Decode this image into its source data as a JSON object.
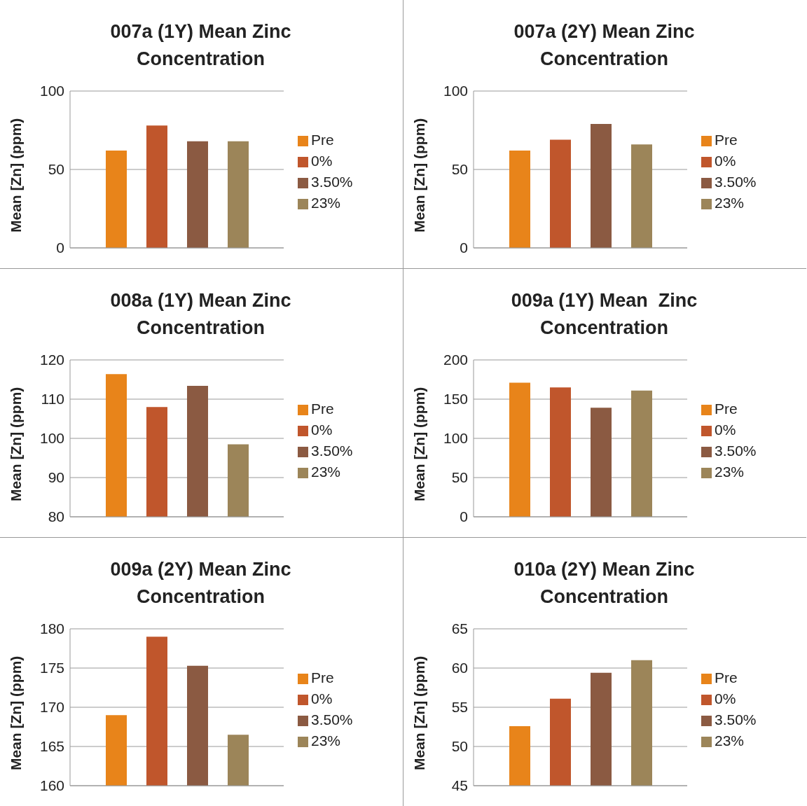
{
  "chart_data": [
    {
      "type": "bar",
      "title": "007a (1Y) Mean Zinc Concentration",
      "ylabel": "Mean [Zn] (ppm)",
      "categories": [
        null
      ],
      "ylim": [
        0,
        100
      ],
      "yticks": [
        0,
        50,
        100
      ],
      "grid": "y",
      "legend": "right",
      "series": [
        {
          "name": "Pre",
          "color": "#e8841a",
          "values": [
            62
          ]
        },
        {
          "name": "0%",
          "color": "#c0562c",
          "values": [
            78
          ]
        },
        {
          "name": "3.50%",
          "color": "#8b5a42",
          "values": [
            68
          ]
        },
        {
          "name": "23%",
          "color": "#9c8559",
          "values": [
            68
          ]
        }
      ]
    },
    {
      "type": "bar",
      "title": "007a (2Y) Mean Zinc Concentration",
      "ylabel": "Mean [Zn] (ppm)",
      "categories": [
        null
      ],
      "ylim": [
        0,
        100
      ],
      "yticks": [
        0,
        50,
        100
      ],
      "grid": "y",
      "legend": "right",
      "series": [
        {
          "name": "Pre",
          "color": "#e8841a",
          "values": [
            62
          ]
        },
        {
          "name": "0%",
          "color": "#c0562c",
          "values": [
            69
          ]
        },
        {
          "name": "3.50%",
          "color": "#8b5a42",
          "values": [
            79
          ]
        },
        {
          "name": "23%",
          "color": "#9c8559",
          "values": [
            66
          ]
        }
      ]
    },
    {
      "type": "bar",
      "title": "008a (1Y) Mean Zinc Concentration",
      "ylabel": "Mean [Zn] (ppm)",
      "categories": [
        null
      ],
      "ylim": [
        80,
        120
      ],
      "yticks": [
        80,
        90,
        100,
        110,
        120
      ],
      "grid": "y",
      "legend": "right",
      "series": [
        {
          "name": "Pre",
          "color": "#e8841a",
          "values": [
            116.4
          ]
        },
        {
          "name": "0%",
          "color": "#c0562c",
          "values": [
            108
          ]
        },
        {
          "name": "3.50%",
          "color": "#8b5a42",
          "values": [
            113.4
          ]
        },
        {
          "name": "23%",
          "color": "#9c8559",
          "values": [
            98.5
          ]
        }
      ]
    },
    {
      "type": "bar",
      "title": "009a (1Y) Mean  Zinc Concentration",
      "ylabel": "Mean [Zn] (ppm)",
      "categories": [
        null
      ],
      "ylim": [
        0,
        200
      ],
      "yticks": [
        0,
        50,
        100,
        150,
        200
      ],
      "grid": "y",
      "legend": "right",
      "series": [
        {
          "name": "Pre",
          "color": "#e8841a",
          "values": [
            171
          ]
        },
        {
          "name": "0%",
          "color": "#c0562c",
          "values": [
            165
          ]
        },
        {
          "name": "3.50%",
          "color": "#8b5a42",
          "values": [
            139
          ]
        },
        {
          "name": "23%",
          "color": "#9c8559",
          "values": [
            161
          ]
        }
      ]
    },
    {
      "type": "bar",
      "title": "009a (2Y) Mean Zinc Concentration",
      "ylabel": "Mean [Zn] (ppm)",
      "categories": [
        null
      ],
      "ylim": [
        160,
        180
      ],
      "yticks": [
        160,
        165,
        170,
        175,
        180
      ],
      "grid": "y",
      "legend": "right",
      "series": [
        {
          "name": "Pre",
          "color": "#e8841a",
          "values": [
            169
          ]
        },
        {
          "name": "0%",
          "color": "#c0562c",
          "values": [
            179
          ]
        },
        {
          "name": "3.50%",
          "color": "#8b5a42",
          "values": [
            175.3
          ]
        },
        {
          "name": "23%",
          "color": "#9c8559",
          "values": [
            166.5
          ]
        }
      ]
    },
    {
      "type": "bar",
      "title": "010a (2Y) Mean Zinc Concentration",
      "ylabel": "Mean [Zn] (ppm)",
      "categories": [
        null
      ],
      "ylim": [
        45,
        65
      ],
      "yticks": [
        45,
        50,
        55,
        60,
        65
      ],
      "grid": "y",
      "legend": "right",
      "series": [
        {
          "name": "Pre",
          "color": "#e8841a",
          "values": [
            52.6
          ]
        },
        {
          "name": "0%",
          "color": "#c0562c",
          "values": [
            56.1
          ]
        },
        {
          "name": "3.50%",
          "color": "#8b5a42",
          "values": [
            59.4
          ]
        },
        {
          "name": "23%",
          "color": "#9c8559",
          "values": [
            61
          ]
        }
      ]
    }
  ]
}
